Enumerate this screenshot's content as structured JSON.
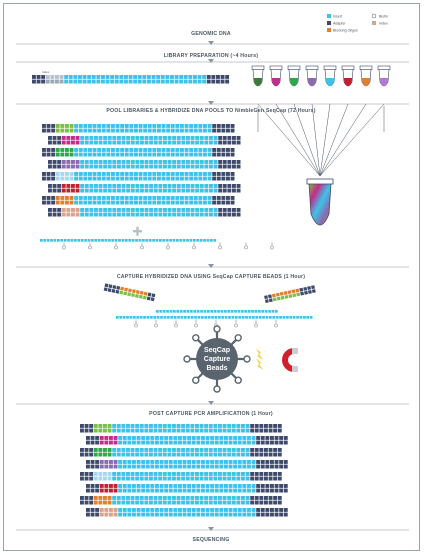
{
  "legend": {
    "items": [
      {
        "label": "Insert",
        "color": "#3cc3e8",
        "shape": "square"
      },
      {
        "label": "Biotin",
        "color": "#ffffff",
        "shape": "circle"
      },
      {
        "label": "Adapter",
        "color": "#3d4a6b",
        "shape": "square"
      },
      {
        "label": "Index",
        "color": "#d8a38c",
        "shape": "square"
      },
      {
        "label": "Blocking Oligos",
        "color": "#e07f2e",
        "shape": "square"
      }
    ]
  },
  "steps": {
    "genomic_dna": "GENOMIC DNA",
    "library_prep": "LIBRARY PREPARATION (~4 Hours)",
    "pool_hybridize": "POOL LIBRARIES & HYBRIDIZE DNA POOLS TO NimbleGen SeqCap (72 Hours)",
    "capture": "CAPTURE HYBRIDIZED DNA USING SeqCap CAPTURE BEADS (1 Hour)",
    "pcr": "POST CAPTURE PCR AMPLIFICATION (1 Hour)",
    "sequencing": "SEQUENCING"
  },
  "index_label": "Index",
  "beads": {
    "line1": "SeqCap",
    "line2": "Capture",
    "line3": "Beads"
  },
  "tube_colors": [
    "#3d7a3d",
    "#c62a8a",
    "#2aa84a",
    "#8a6ab0",
    "#3cc3e8",
    "#c02030",
    "#e07f2e",
    "#b07ad0"
  ],
  "index_colors": [
    "#7ac143",
    "#c62a8a",
    "#2aa84a",
    "#8a6ab0",
    "#a8d8f0",
    "#c02030",
    "#e07f2e",
    "#d8a38c"
  ],
  "colors": {
    "insert": "#3cc3e8",
    "adapter": "#3d4a6b",
    "divider": "#8a959f",
    "magnet": "#d0202a"
  }
}
